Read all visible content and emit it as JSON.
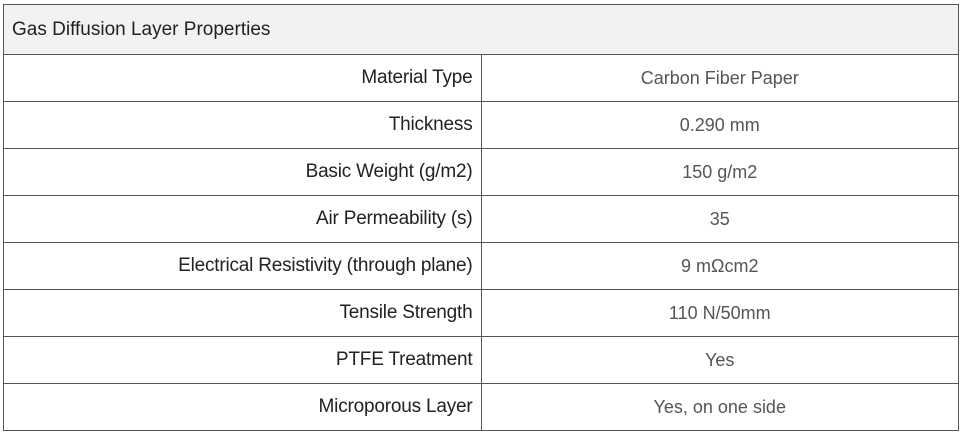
{
  "table": {
    "title": "Gas Diffusion Layer Properties",
    "rows": [
      [
        "Material Type",
        "Carbon Fiber Paper"
      ],
      [
        "Thickness",
        "0.290 mm"
      ],
      [
        "Basic Weight (g/m2)",
        "150 g/m2"
      ],
      [
        "Air Permeability (s)",
        "35"
      ],
      [
        "Electrical Resistivity (through plane)",
        "9 mΩcm2"
      ],
      [
        "Tensile Strength",
        "110 N/50mm"
      ],
      [
        "PTFE Treatment",
        "Yes"
      ],
      [
        "Microporous Layer",
        "Yes, on one side"
      ]
    ]
  }
}
